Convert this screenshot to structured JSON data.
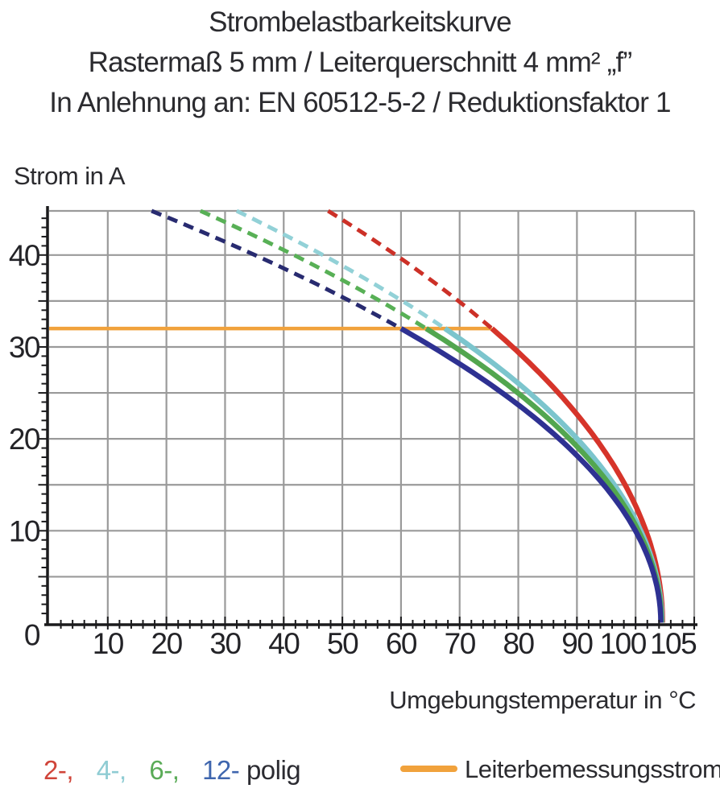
{
  "title": {
    "line1": "Strombelastbarkeitskurve",
    "line2": "Rastermaß 5 mm / Leiterquerschnitt 4 mm² „f”",
    "line3": "In Anlehnung an: EN 60512-5-2 / Reduktionsfaktor 1"
  },
  "labels": {
    "y_axis": "Strom in A",
    "x_axis": "Umgebungstemperatur in °C"
  },
  "legend": {
    "items": [
      {
        "label": "2-,",
        "poles": 2,
        "color": "#d0453a"
      },
      {
        "label": "4-,",
        "poles": 4,
        "color": "#8fccd3"
      },
      {
        "label": "6-,",
        "poles": 6,
        "color": "#5aab57"
      },
      {
        "label": "12-",
        "poles": 12,
        "color": "#3f66ae"
      },
      {
        "label": "polig",
        "color": "#2b2b31"
      }
    ],
    "rated": {
      "label": "Leiterbemessungsstrom",
      "color": "#f1a23c"
    }
  },
  "chart_data": {
    "type": "line",
    "title": "Strombelastbarkeitskurve",
    "xlabel": "Umgebungstemperatur in °C",
    "ylabel": "Strom in A",
    "xlim": [
      0,
      110
    ],
    "ylim": [
      0,
      44.8
    ],
    "grid": true,
    "grid_color": "#9a9a9a",
    "axis_color": "#1b1b1d",
    "x_ticks": [
      10,
      20,
      30,
      40,
      50,
      60,
      70,
      80,
      90,
      100,
      105
    ],
    "x_minor_step": 2,
    "y_ticks": [
      0,
      10,
      20,
      30,
      40
    ],
    "y_grid_step": 5,
    "y_minor_step": 1,
    "rated_current": {
      "name": "Leiterbemessungsstrom",
      "value_a": 32,
      "t_start": 0,
      "t_end": 75.5,
      "color": "#f1a23c"
    },
    "series": [
      {
        "name": "2-polig",
        "poles": 2,
        "color": "#d6342a",
        "dash_color": "#cc3027",
        "rated_i": 32,
        "knee_t": 75.5,
        "end_t": 104.6,
        "dashed_points": [
          [
            48.5,
            44.8
          ],
          [
            60,
            39.6
          ],
          [
            70,
            34.9
          ],
          [
            75.5,
            32
          ]
        ],
        "solid_points": [
          [
            75.5,
            32
          ],
          [
            80,
            29.4
          ],
          [
            85,
            26.2
          ],
          [
            90,
            22.7
          ],
          [
            95,
            18.4
          ],
          [
            100,
            12.7
          ],
          [
            103,
            7.5
          ],
          [
            104.6,
            0
          ]
        ]
      },
      {
        "name": "4-polig",
        "poles": 4,
        "color": "#7cc5cd",
        "dash_color": "#92d1d7",
        "rated_i": 32,
        "knee_t": 67.5,
        "end_t": 104.5,
        "dashed_points": [
          [
            32.3,
            44.8
          ],
          [
            40,
            41.8
          ],
          [
            50,
            38.8
          ],
          [
            60,
            34.9
          ],
          [
            67.5,
            32
          ]
        ],
        "solid_points": [
          [
            67.5,
            32
          ],
          [
            70,
            30.9
          ],
          [
            80,
            26.0
          ],
          [
            90,
            20.0
          ],
          [
            100,
            11.2
          ],
          [
            104.5,
            0
          ]
        ]
      },
      {
        "name": "6-polig",
        "poles": 6,
        "color": "#52a64f",
        "dash_color": "#58b056",
        "rated_i": 32,
        "knee_t": 64.3,
        "end_t": 104.4,
        "dashed_points": [
          [
            26.1,
            44.8
          ],
          [
            40,
            40.6
          ],
          [
            50,
            37.3
          ],
          [
            60,
            33.7
          ],
          [
            64.3,
            32
          ]
        ],
        "solid_points": [
          [
            64.3,
            32
          ],
          [
            70,
            29.6
          ],
          [
            80,
            25.0
          ],
          [
            90,
            19.2
          ],
          [
            100,
            10.6
          ],
          [
            104.4,
            0
          ]
        ]
      },
      {
        "name": "12-polig",
        "poles": 12,
        "color": "#2e3192",
        "dash_color": "#282b70",
        "rated_i": 32,
        "knee_t": 60,
        "end_t": 104.3,
        "dashed_points": [
          [
            17.6,
            44.8
          ],
          [
            30,
            41.4
          ],
          [
            40,
            38.6
          ],
          [
            50,
            35.0
          ],
          [
            60,
            32
          ]
        ],
        "solid_points": [
          [
            60,
            32
          ],
          [
            70,
            28.2
          ],
          [
            80,
            23.7
          ],
          [
            90,
            18.2
          ],
          [
            100,
            10.0
          ],
          [
            104.3,
            0
          ]
        ]
      }
    ],
    "curve_model": "I(T) = rated_i * sqrt((end_t - T) / (end_t - knee_t)); dashed where I > 32 A, solid below"
  }
}
